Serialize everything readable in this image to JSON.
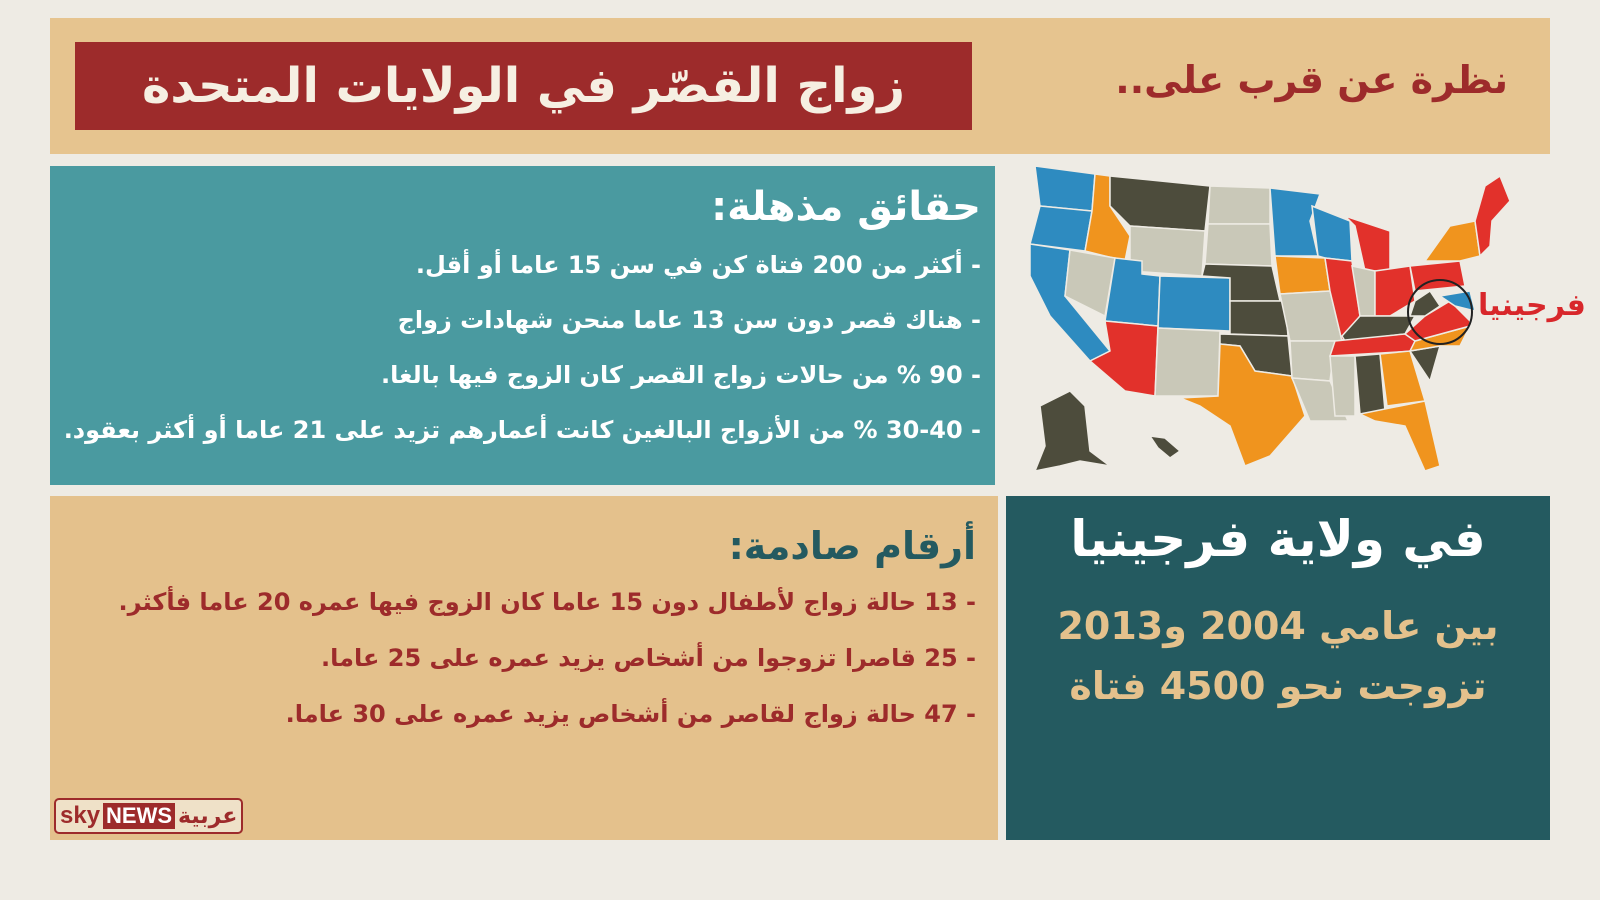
{
  "header": {
    "title": "زواج القصّر في الولايات المتحدة",
    "subtitle": "نظرة عن قرب على.."
  },
  "facts": {
    "heading": "حقائق مذهلة:",
    "items": [
      "- أكثر من 200 فتاة كن في سن 15 عاما أو أقل.",
      "- هناك قصر دون سن 13 عاما منحن شهادات زواج",
      "- 90 % من حالات زواج القصر كان الزوج فيها بالغا.",
      "- 30-40 % من الأزواج البالغين كانت أعمارهم تزيد على 21 عاما أو أكثر بعقود."
    ]
  },
  "numbers": {
    "heading": "أرقام صادمة:",
    "items": [
      "- 13 حالة زواج لأطفال دون 15 عاما كان الزوج فيها عمره 20 عاما فأكثر.",
      "- 25 قاصرا تزوجوا من أشخاص يزيد عمره على 25 عاما.",
      "- 47 حالة زواج لقاصر من أشخاص يزيد عمره على 30 عاما."
    ]
  },
  "virginia": {
    "heading": "في ولاية فرجينيا",
    "line1": "بين عامي 2004 و2013",
    "line2": "تزوجت نحو 4500 فتاة"
  },
  "map": {
    "highlight_label": "فرجينيا",
    "colors": {
      "blue": "#2e8bc0",
      "orange": "#f0941e",
      "red": "#e2312b",
      "olive": "#4d4c3c",
      "gray": "#c9c8b8"
    }
  },
  "logo": {
    "sky": "sky",
    "news": "NEWS",
    "arabic": "عربية"
  }
}
